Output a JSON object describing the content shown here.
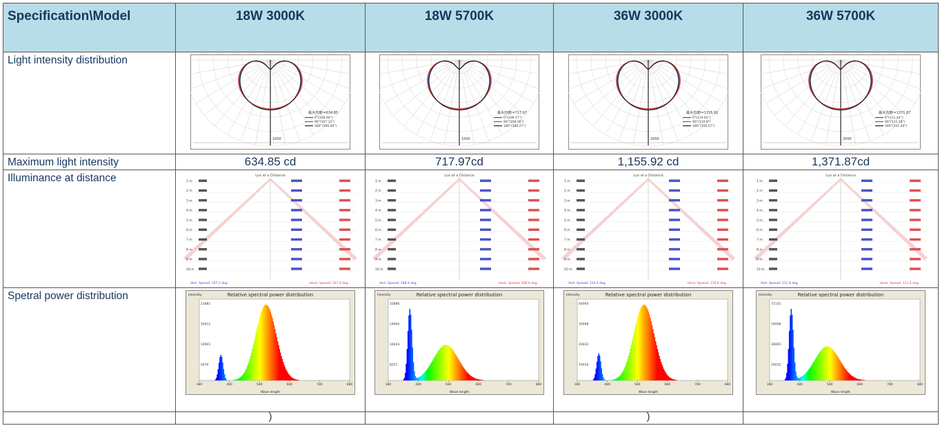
{
  "table": {
    "header": {
      "spec_label": "Specification\\Model",
      "models": [
        "18W 3000K",
        "18W 5700K",
        "36W 3000K",
        "36W 5700K"
      ]
    },
    "rows": {
      "light_intensity_label": "Light intensity distribution",
      "max_intensity_label": "Maximum light intensity",
      "max_intensity_values": [
        "634.85 cd",
        "717.97cd",
        "1,155.92 cd",
        "1,371.87cd"
      ],
      "illuminance_label": "Illuminance at distance",
      "spectral_label": "Spetral power distribution",
      "last_row_notes": [
        ")",
        "",
        ")",
        ""
      ]
    },
    "polar_charts": [
      {
        "header": "最大光度I=634.85",
        "legend": [
          "0°(106.90°)",
          "90°(107.11°)",
          "180°(106.94°)"
        ],
        "scale": "1000"
      },
      {
        "header": "最大光度I=717.97",
        "legend": [
          "0°(106.17°)",
          "90°(108.36°)",
          "180°(108.27°)"
        ],
        "scale": "1000"
      },
      {
        "header": "最大光度I=1155.92",
        "legend": [
          "0°(110.62°)",
          "90°(110.9°)",
          "180°(110.57°)"
        ],
        "scale": "2000"
      },
      {
        "header": "最大光度I=1371.87",
        "legend": [
          "0°(111.44°)",
          "90°(111.39°)",
          "180°(111.44°)"
        ],
        "scale": "2000"
      }
    ],
    "lux_charts": [
      {
        "title": "Lux at a Distance",
        "vert": "Vert. Spread: 107.1 deg.",
        "horiz": "Horiz. Spread: 107.0 deg.",
        "distances": [
          "1 m",
          "2 m",
          "3 m",
          "4 m",
          "5 m",
          "6 m",
          "7 m",
          "8 m",
          "9 m",
          "10 m"
        ]
      },
      {
        "title": "Lux at a Distance",
        "vert": "Vert. Spread: 108.4 deg.",
        "horiz": "Horiz. Spread: 108.4 deg.",
        "distances": [
          "1 m",
          "2 m",
          "3 m",
          "4 m",
          "5 m",
          "6 m",
          "7 m",
          "8 m",
          "9 m",
          "10 m"
        ]
      },
      {
        "title": "Lux at a Distance",
        "vert": "Vert. Spread: 110.6 deg.",
        "horiz": "Horiz. Spread: 110.9 deg.",
        "distances": [
          "1 m",
          "2 m",
          "3 m",
          "4 m",
          "5 m",
          "6 m",
          "7 m",
          "8 m",
          "9 m",
          "10 m"
        ]
      },
      {
        "title": "Lux at a Distance",
        "vert": "Vert. Spread: 111.4 deg.",
        "horiz": "Horiz. Spread: 111.4 deg.",
        "distances": [
          "1 m",
          "2 m",
          "3 m",
          "4 m",
          "5 m",
          "6 m",
          "7 m",
          "8 m",
          "9 m",
          "10 m"
        ]
      }
    ],
    "spectra": [
      {
        "title": "Relative spectral power distribution",
        "y_label": "Intensity",
        "x_label": "Wave length",
        "y_ticks": [
          "21881",
          "16411",
          "10941",
          "5470"
        ],
        "x_ticks": [
          "380",
          "480",
          "580",
          "680",
          "780",
          "880"
        ],
        "blue_peak": 0.36,
        "green_peak": 1.0
      },
      {
        "title": "Relative spectral power distribution",
        "y_label": "Intensity",
        "x_label": "Wave length",
        "y_ticks": [
          "32886",
          "24665",
          "16443",
          "8221"
        ],
        "x_ticks": [
          "380",
          "480",
          "580",
          "680",
          "780",
          "880"
        ],
        "blue_peak": 1.0,
        "green_peak": 0.47
      },
      {
        "title": "Relative spectral power distribution",
        "y_label": "Intensity",
        "x_label": "Wave length",
        "y_ticks": [
          "40064",
          "30048",
          "20032",
          "10016"
        ],
        "x_ticks": [
          "380",
          "480",
          "580",
          "680",
          "780",
          "880"
        ],
        "blue_peak": 0.38,
        "green_peak": 1.0
      },
      {
        "title": "Relative spectral power distribution",
        "y_label": "Intensity",
        "x_label": "Wave length",
        "y_ticks": [
          "72131",
          "54098",
          "36065",
          "18032"
        ],
        "x_ticks": [
          "380",
          "480",
          "580",
          "680",
          "780",
          "880"
        ],
        "blue_peak": 1.0,
        "green_peak": 0.45
      }
    ]
  }
}
